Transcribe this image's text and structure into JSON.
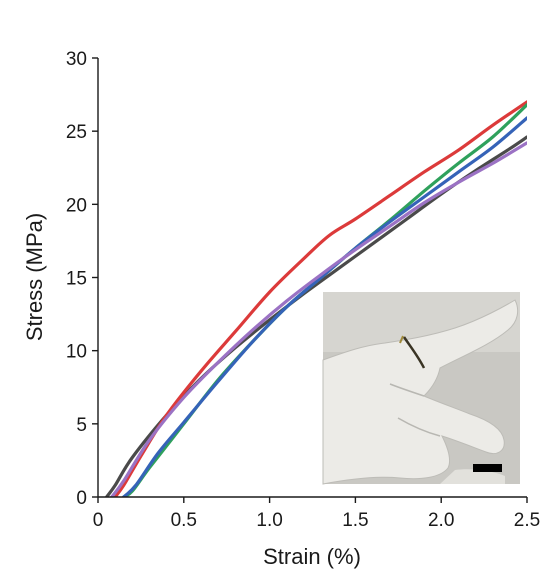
{
  "chart_data": {
    "type": "line",
    "xlabel": "Strain (%)",
    "ylabel": "Stress (MPa)",
    "xlim": [
      0,
      2.5
    ],
    "ylim": [
      0,
      30
    ],
    "xticks": [
      "0",
      "0.5",
      "1.0",
      "1.5",
      "2.0",
      "2.5"
    ],
    "yticks": [
      "0",
      "5",
      "10",
      "15",
      "20",
      "25",
      "30"
    ],
    "grid": false,
    "legend": "none",
    "series": [
      {
        "color": "#4a4a4a",
        "points": [
          [
            0.05,
            0
          ],
          [
            0.1,
            0.8
          ],
          [
            0.2,
            2.7
          ],
          [
            0.4,
            5.6
          ],
          [
            0.6,
            8.1
          ],
          [
            0.8,
            10.2
          ],
          [
            1.0,
            12.1
          ],
          [
            1.2,
            13.9
          ],
          [
            1.4,
            15.6
          ],
          [
            1.6,
            17.3
          ],
          [
            1.8,
            19.0
          ],
          [
            2.0,
            20.7
          ],
          [
            2.2,
            22.3
          ],
          [
            2.4,
            23.8
          ],
          [
            2.5,
            24.6
          ]
        ]
      },
      {
        "color": "#dc3a3a",
        "points": [
          [
            0.1,
            0
          ],
          [
            0.15,
            0.8
          ],
          [
            0.25,
            2.8
          ],
          [
            0.4,
            5.6
          ],
          [
            0.6,
            8.6
          ],
          [
            0.8,
            11.3
          ],
          [
            1.0,
            14.0
          ],
          [
            1.2,
            16.3
          ],
          [
            1.35,
            17.9
          ],
          [
            1.5,
            19.0
          ],
          [
            1.7,
            20.6
          ],
          [
            1.9,
            22.2
          ],
          [
            2.1,
            23.7
          ],
          [
            2.3,
            25.4
          ],
          [
            2.5,
            27.0
          ]
        ]
      },
      {
        "color": "#2fa15c",
        "points": [
          [
            0.15,
            0
          ],
          [
            0.2,
            0.4
          ],
          [
            0.3,
            2.0
          ],
          [
            0.5,
            5.0
          ],
          [
            0.7,
            8.0
          ],
          [
            0.9,
            10.6
          ],
          [
            1.1,
            13.0
          ],
          [
            1.3,
            15.0
          ],
          [
            1.5,
            17.0
          ],
          [
            1.7,
            18.9
          ],
          [
            1.9,
            20.9
          ],
          [
            2.1,
            22.8
          ],
          [
            2.3,
            24.6
          ],
          [
            2.5,
            26.8
          ]
        ]
      },
      {
        "color": "#3563b8",
        "points": [
          [
            0.15,
            0
          ],
          [
            0.22,
            0.8
          ],
          [
            0.35,
            3.0
          ],
          [
            0.5,
            5.1
          ],
          [
            0.7,
            7.9
          ],
          [
            0.9,
            10.6
          ],
          [
            1.1,
            13.0
          ],
          [
            1.3,
            15.0
          ],
          [
            1.5,
            17.0
          ],
          [
            1.7,
            18.8
          ],
          [
            1.9,
            20.5
          ],
          [
            2.1,
            22.2
          ],
          [
            2.3,
            23.9
          ],
          [
            2.5,
            25.9
          ]
        ]
      },
      {
        "color": "#9b72c4",
        "points": [
          [
            0.08,
            0
          ],
          [
            0.15,
            1.1
          ],
          [
            0.3,
            3.9
          ],
          [
            0.5,
            6.8
          ],
          [
            0.7,
            9.2
          ],
          [
            0.9,
            11.4
          ],
          [
            1.1,
            13.4
          ],
          [
            1.3,
            15.2
          ],
          [
            1.5,
            16.9
          ],
          [
            1.7,
            18.5
          ],
          [
            1.9,
            20.1
          ],
          [
            2.1,
            21.5
          ],
          [
            2.3,
            22.8
          ],
          [
            2.5,
            24.2
          ]
        ]
      }
    ],
    "inset": {
      "type": "photo",
      "subject": "gloved hand with a thin dark strip wrapped around a finger; black scale bar at lower right"
    }
  }
}
